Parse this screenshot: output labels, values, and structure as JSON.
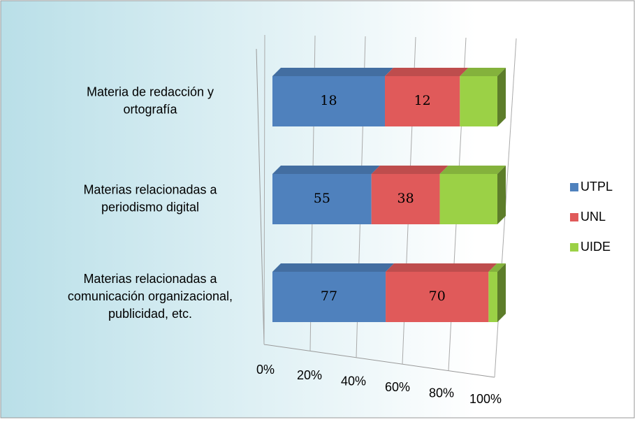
{
  "chart_data": {
    "type": "bar3d_stacked100",
    "categories": [
      [
        "Materia de redacción y",
        "ortografía"
      ],
      [
        "Materias relacionadas a",
        "periodismo digital"
      ],
      [
        "Materias relacionadas a",
        "comunicación organizacional,",
        "publicidad, etc."
      ]
    ],
    "series": [
      {
        "name": "UTPL",
        "color": "#4f81bd",
        "values": [
          18,
          55,
          77
        ]
      },
      {
        "name": "UNL",
        "color": "#e05a5a",
        "values": [
          12,
          38,
          70
        ]
      },
      {
        "name": "UIDE",
        "color": "#9bd146",
        "values": [
          6,
          32,
          6
        ]
      }
    ],
    "xlim": [
      0,
      100
    ],
    "xticks": [
      {
        "value": 0,
        "label": "0%"
      },
      {
        "value": 20,
        "label": "20%"
      },
      {
        "value": 40,
        "label": "40%"
      },
      {
        "value": 60,
        "label": "60%"
      },
      {
        "value": 80,
        "label": "80%"
      },
      {
        "value": 100,
        "label": "100%"
      }
    ],
    "grid": true,
    "legend": "right"
  }
}
